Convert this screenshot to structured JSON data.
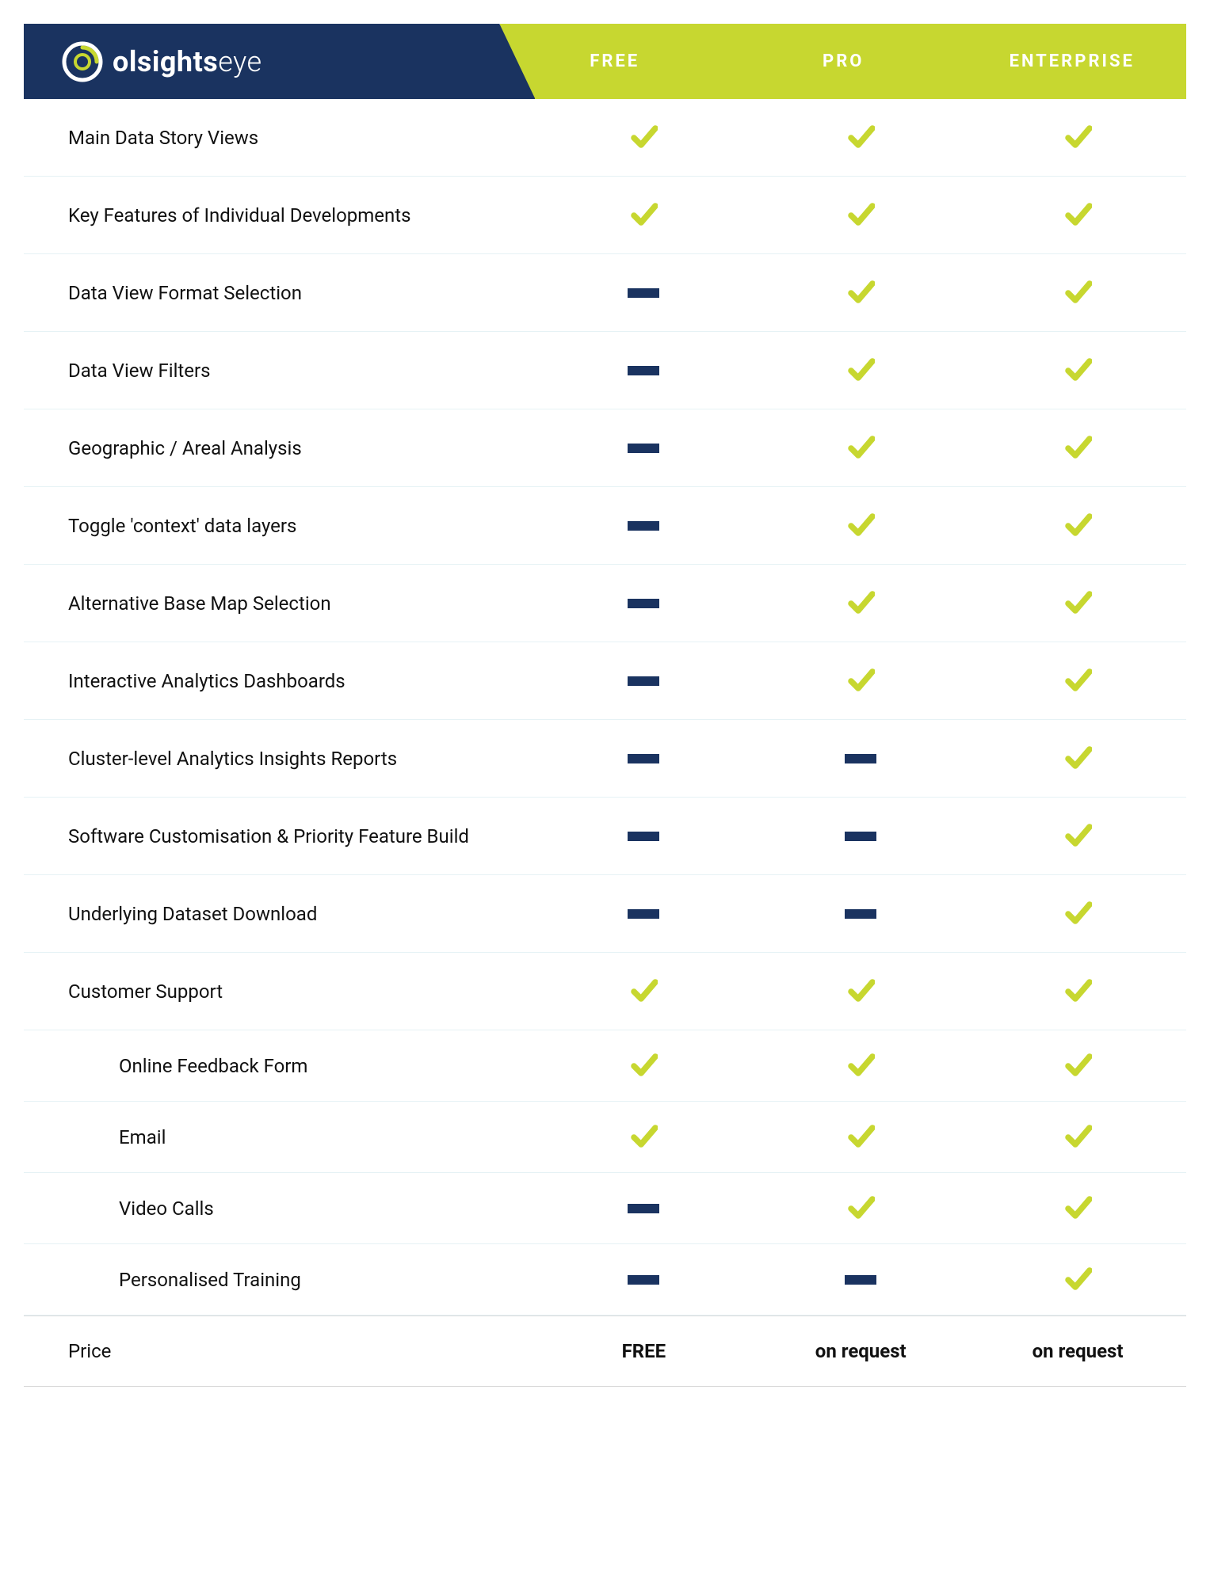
{
  "brand": {
    "name_bold": "olsights",
    "name_light": "eye"
  },
  "colors": {
    "header_dark": "#1a3360",
    "accent": "#c7d730",
    "row_border": "#e6f2f5",
    "price_border": "#d9d9d9",
    "text": "#111111",
    "white": "#ffffff",
    "dash": "#1a3360",
    "check": "#c7d730"
  },
  "tiers": [
    "FREE",
    "PRO",
    "ENTERPRISE"
  ],
  "features": [
    {
      "label": "Main Data Story Views",
      "sub": false,
      "values": [
        "check",
        "check",
        "check"
      ]
    },
    {
      "label": "Key Features of Individual Developments",
      "sub": false,
      "values": [
        "check",
        "check",
        "check"
      ]
    },
    {
      "label": "Data View Format Selection",
      "sub": false,
      "values": [
        "dash",
        "check",
        "check"
      ]
    },
    {
      "label": "Data View Filters",
      "sub": false,
      "values": [
        "dash",
        "check",
        "check"
      ]
    },
    {
      "label": "Geographic / Areal Analysis",
      "sub": false,
      "values": [
        "dash",
        "check",
        "check"
      ]
    },
    {
      "label": "Toggle 'context' data layers",
      "sub": false,
      "values": [
        "dash",
        "check",
        "check"
      ]
    },
    {
      "label": "Alternative Base Map Selection",
      "sub": false,
      "values": [
        "dash",
        "check",
        "check"
      ]
    },
    {
      "label": "Interactive Analytics Dashboards",
      "sub": false,
      "values": [
        "dash",
        "check",
        "check"
      ]
    },
    {
      "label": "Cluster-level Analytics Insights Reports",
      "sub": false,
      "values": [
        "dash",
        "dash",
        "check"
      ]
    },
    {
      "label": "Software Customisation & Priority Feature Build",
      "sub": false,
      "values": [
        "dash",
        "dash",
        "check"
      ]
    },
    {
      "label": "Underlying Dataset Download",
      "sub": false,
      "values": [
        "dash",
        "dash",
        "check"
      ]
    },
    {
      "label": "Customer Support",
      "sub": false,
      "values": [
        "check",
        "check",
        "check"
      ]
    },
    {
      "label": "Online Feedback Form",
      "sub": true,
      "values": [
        "check",
        "check",
        "check"
      ]
    },
    {
      "label": "Email",
      "sub": true,
      "values": [
        "check",
        "check",
        "check"
      ]
    },
    {
      "label": "Video Calls",
      "sub": true,
      "values": [
        "dash",
        "check",
        "check"
      ]
    },
    {
      "label": "Personalised Training",
      "sub": true,
      "values": [
        "dash",
        "dash",
        "check"
      ]
    }
  ],
  "price_row": {
    "label": "Price",
    "values": [
      "FREE",
      "on request",
      "on request"
    ]
  }
}
